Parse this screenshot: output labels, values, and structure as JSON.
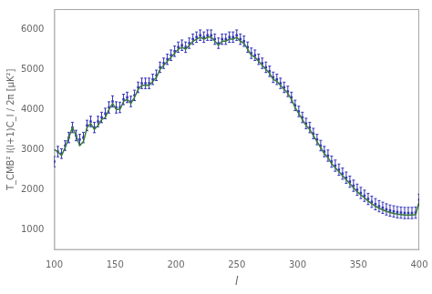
{
  "chart_data": {
    "type": "scatter",
    "xlabel": "l",
    "ylabel": "T_CMB² l(l+1)C_l / 2π [μK²]",
    "xlim": [
      100,
      400
    ],
    "ylim": [
      500,
      6500
    ],
    "xticks": [
      100,
      150,
      200,
      250,
      300,
      350,
      400
    ],
    "yticks": [
      1000,
      2000,
      3000,
      4000,
      5000,
      6000
    ],
    "grid": false,
    "series": [
      {
        "type": "scatter",
        "color": "#3333bb",
        "marker": "square",
        "x": [
          100,
          103,
          106,
          109,
          112,
          115,
          118,
          121,
          124,
          127,
          130,
          133,
          136,
          139,
          142,
          145,
          148,
          151,
          154,
          157,
          160,
          163,
          166,
          169,
          172,
          175,
          178,
          181,
          184,
          187,
          190,
          193,
          196,
          199,
          202,
          205,
          208,
          211,
          214,
          217,
          220,
          223,
          226,
          229,
          232,
          235,
          238,
          241,
          244,
          247,
          250,
          253,
          256,
          259,
          262,
          265,
          268,
          271,
          274,
          277,
          280,
          283,
          286,
          289,
          292,
          295,
          298,
          301,
          304,
          307,
          310,
          313,
          316,
          319,
          322,
          325,
          328,
          331,
          334,
          337,
          340,
          343,
          346,
          349,
          352,
          355,
          358,
          361,
          364,
          367,
          370,
          373,
          376,
          379,
          382,
          385,
          388,
          391,
          394,
          397,
          400
        ],
        "values": [
          2700,
          2950,
          2900,
          3100,
          3300,
          3550,
          3350,
          3250,
          3300,
          3600,
          3700,
          3550,
          3700,
          3800,
          3900,
          4050,
          4200,
          4050,
          4050,
          4250,
          4300,
          4200,
          4350,
          4550,
          4650,
          4650,
          4650,
          4750,
          4850,
          5050,
          5150,
          5250,
          5350,
          5450,
          5550,
          5600,
          5550,
          5650,
          5750,
          5800,
          5850,
          5800,
          5850,
          5850,
          5750,
          5650,
          5750,
          5750,
          5800,
          5800,
          5850,
          5750,
          5700,
          5550,
          5400,
          5350,
          5250,
          5150,
          5050,
          4950,
          4800,
          4750,
          4650,
          4550,
          4450,
          4300,
          4100,
          3950,
          3800,
          3650,
          3550,
          3400,
          3250,
          3100,
          2950,
          2850,
          2700,
          2600,
          2500,
          2400,
          2300,
          2200,
          2100,
          2000,
          1920,
          1850,
          1770,
          1700,
          1640,
          1590,
          1550,
          1510,
          1480,
          1460,
          1440,
          1430,
          1420,
          1420,
          1420,
          1430,
          1750
        ],
        "error": [
          130,
          130,
          120,
          120,
          130,
          130,
          130,
          130,
          130,
          130,
          130,
          130,
          130,
          130,
          130,
          140,
          140,
          140,
          130,
          130,
          130,
          130,
          130,
          130,
          130,
          130,
          130,
          130,
          130,
          130,
          130,
          130,
          130,
          130,
          130,
          130,
          130,
          130,
          130,
          130,
          130,
          130,
          130,
          130,
          130,
          130,
          130,
          130,
          130,
          130,
          130,
          130,
          130,
          130,
          130,
          130,
          130,
          130,
          130,
          130,
          130,
          130,
          130,
          130,
          130,
          130,
          130,
          130,
          130,
          130,
          130,
          130,
          130,
          130,
          130,
          140,
          140,
          140,
          140,
          140,
          140,
          140,
          140,
          140,
          140,
          140,
          140,
          140,
          140,
          140,
          140,
          140,
          140,
          140,
          140,
          140,
          140,
          140,
          140,
          140,
          140
        ]
      },
      {
        "type": "line",
        "color": "#3a7a3a",
        "marker": "none",
        "line_style": "solid",
        "x": [
          100,
          103,
          106,
          109,
          112,
          115,
          118,
          121,
          124,
          127,
          130,
          133,
          136,
          139,
          142,
          145,
          148,
          151,
          154,
          157,
          160,
          163,
          166,
          169,
          172,
          175,
          178,
          181,
          184,
          187,
          190,
          193,
          196,
          199,
          202,
          205,
          208,
          211,
          214,
          217,
          220,
          223,
          226,
          229,
          232,
          235,
          238,
          241,
          244,
          247,
          250,
          253,
          256,
          259,
          262,
          265,
          268,
          271,
          274,
          277,
          280,
          283,
          286,
          289,
          292,
          295,
          298,
          301,
          304,
          307,
          310,
          313,
          316,
          319,
          322,
          325,
          328,
          331,
          334,
          337,
          340,
          343,
          346,
          349,
          352,
          355,
          358,
          361,
          364,
          367,
          370,
          373,
          376,
          379,
          382,
          385,
          388,
          391,
          394,
          397,
          400
        ],
        "values": [
          3000,
          2950,
          2850,
          3050,
          3300,
          3550,
          3350,
          3100,
          3200,
          3550,
          3650,
          3500,
          3600,
          3750,
          3800,
          4000,
          4150,
          4000,
          4000,
          4200,
          4250,
          4150,
          4300,
          4500,
          4600,
          4600,
          4600,
          4700,
          4800,
          5000,
          5100,
          5200,
          5300,
          5400,
          5500,
          5550,
          5500,
          5600,
          5700,
          5750,
          5800,
          5750,
          5800,
          5800,
          5700,
          5600,
          5700,
          5700,
          5750,
          5750,
          5800,
          5700,
          5650,
          5500,
          5350,
          5300,
          5200,
          5100,
          5000,
          4900,
          4750,
          4700,
          4600,
          4500,
          4400,
          4250,
          4050,
          3900,
          3750,
          3600,
          3500,
          3350,
          3200,
          3050,
          2900,
          2800,
          2650,
          2550,
          2450,
          2350,
          2250,
          2150,
          2050,
          1950,
          1870,
          1800,
          1720,
          1650,
          1590,
          1540,
          1500,
          1460,
          1430,
          1410,
          1390,
          1380,
          1370,
          1370,
          1370,
          1380,
          1700
        ]
      }
    ]
  }
}
